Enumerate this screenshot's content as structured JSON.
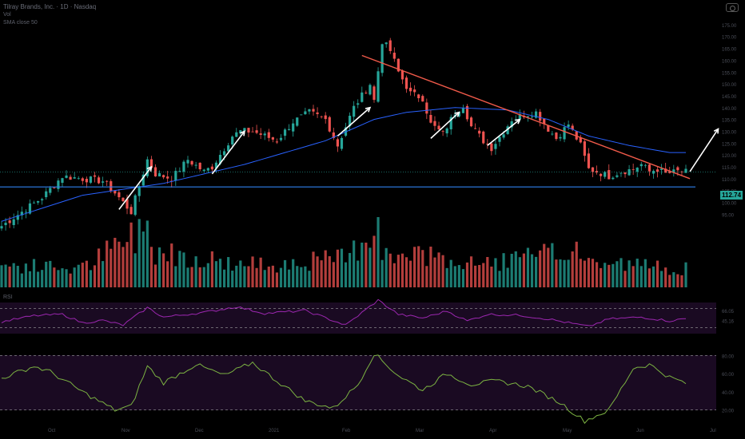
{
  "header": {
    "title": "Tilray Brands, Inc. · 1D · Nasdaq",
    "subtitle": "Vol",
    "indicator": "SMA close 50"
  },
  "camera_icon": "camera-icon",
  "last_price": "112.74",
  "colors": {
    "up": "#26a69a",
    "down": "#ef5350",
    "ma": "#2962ff",
    "trend_line": "#f05a4a",
    "support_line": "#2f80ed",
    "rsi": "#9c27b0",
    "osc": "#7cb342",
    "pane_bg": "#1a0a22",
    "band": "#9e9e9e"
  },
  "chart_data": [
    {
      "type": "candlestick",
      "title": "",
      "xlabel": "",
      "ylabel": "",
      "ylim": [
        85,
        178
      ],
      "price_ticks": [
        "175.00",
        "170.00",
        "165.00",
        "160.00",
        "155.00",
        "150.00",
        "145.00",
        "140.00",
        "135.00",
        "130.00",
        "125.00",
        "120.00",
        "115.00",
        "110.00",
        "105.00",
        "100.00",
        "95.00"
      ],
      "time_ticks": [
        "Oct",
        "Nov",
        "Dec",
        "2021",
        "Feb",
        "Mar",
        "Apr",
        "May",
        "Jun",
        "Jul"
      ],
      "last_price": 112.74,
      "grid": false,
      "candle_count": 170,
      "closes_anchor": [
        [
          0,
          90
        ],
        [
          10,
          102
        ],
        [
          15,
          111
        ],
        [
          25,
          109
        ],
        [
          28,
          104
        ],
        [
          30,
          100
        ],
        [
          32,
          96
        ],
        [
          36,
          118
        ],
        [
          38,
          112
        ],
        [
          42,
          110
        ],
        [
          46,
          118
        ],
        [
          50,
          113
        ],
        [
          52,
          115
        ],
        [
          57,
          128
        ],
        [
          59,
          130
        ],
        [
          62,
          130
        ],
        [
          65,
          128
        ],
        [
          68,
          126
        ],
        [
          72,
          134
        ],
        [
          76,
          138
        ],
        [
          80,
          135
        ],
        [
          83,
          124
        ],
        [
          87,
          140
        ],
        [
          91,
          150
        ],
        [
          92,
          143
        ],
        [
          94,
          168
        ],
        [
          96,
          164
        ],
        [
          98,
          155
        ],
        [
          101,
          146
        ],
        [
          104,
          144
        ],
        [
          106,
          133
        ],
        [
          109,
          129
        ],
        [
          112,
          138
        ],
        [
          114,
          141
        ],
        [
          116,
          132
        ],
        [
          119,
          126
        ],
        [
          121,
          123
        ],
        [
          124,
          130
        ],
        [
          126,
          135
        ],
        [
          129,
          137
        ],
        [
          132,
          138
        ],
        [
          135,
          131
        ],
        [
          137,
          127
        ],
        [
          140,
          133
        ],
        [
          143,
          124
        ],
        [
          145,
          114
        ],
        [
          147,
          113
        ],
        [
          150,
          111
        ],
        [
          153,
          113
        ],
        [
          156,
          114
        ],
        [
          158,
          116
        ],
        [
          160,
          113
        ],
        [
          162,
          114
        ],
        [
          164,
          112
        ],
        [
          167,
          113
        ],
        [
          169,
          112.74
        ]
      ],
      "moving_average_anchor": [
        [
          0,
          92
        ],
        [
          20,
          103
        ],
        [
          40,
          108
        ],
        [
          60,
          116
        ],
        [
          80,
          126
        ],
        [
          92,
          135
        ],
        [
          100,
          138
        ],
        [
          112,
          140
        ],
        [
          125,
          139
        ],
        [
          135,
          135
        ],
        [
          145,
          128
        ],
        [
          155,
          124
        ],
        [
          165,
          121
        ]
      ],
      "trend_line": [
        [
          89,
          162
        ],
        [
          170,
          110
        ]
      ],
      "support_line": 106.5,
      "volume_relative_anchor": [
        [
          0,
          0.35
        ],
        [
          20,
          0.3
        ],
        [
          36,
          0.95
        ],
        [
          37,
          0.6
        ],
        [
          60,
          0.35
        ],
        [
          85,
          0.45
        ],
        [
          93,
          1.0
        ],
        [
          94,
          0.5
        ],
        [
          100,
          0.45
        ],
        [
          106,
          0.5
        ],
        [
          115,
          0.35
        ],
        [
          140,
          0.55
        ],
        [
          145,
          0.4
        ],
        [
          170,
          0.3
        ]
      ],
      "volume_spikes": [
        [
          36,
          0.95
        ],
        [
          93,
          1.0
        ],
        [
          84,
          0.55
        ],
        [
          142,
          0.65
        ],
        [
          106,
          0.58
        ]
      ],
      "arrows": [
        {
          "from": [
            29,
            97
          ],
          "to": [
            37,
            115
          ]
        },
        {
          "from": [
            52,
            112
          ],
          "to": [
            60,
            130
          ]
        },
        {
          "from": [
            83,
            128
          ],
          "to": [
            91,
            140
          ]
        },
        {
          "from": [
            106,
            127
          ],
          "to": [
            113,
            138
          ]
        },
        {
          "from": [
            120,
            124
          ],
          "to": [
            128,
            135
          ]
        },
        {
          "from": [
            170,
            113
          ],
          "to": [
            177,
            131
          ]
        }
      ]
    },
    {
      "type": "line",
      "title": "RSI",
      "ylim": [
        0,
        100
      ],
      "upper_band": 70,
      "lower_band": 30,
      "y_ticks": [
        "66.05",
        "45.16"
      ],
      "series": [
        {
          "values_anchor": [
            [
              0,
              42
            ],
            [
              8,
              55
            ],
            [
              15,
              58
            ],
            [
              20,
              40
            ],
            [
              25,
              45
            ],
            [
              30,
              35
            ],
            [
              36,
              72
            ],
            [
              40,
              52
            ],
            [
              50,
              62
            ],
            [
              58,
              74
            ],
            [
              65,
              60
            ],
            [
              75,
              66
            ],
            [
              85,
              35
            ],
            [
              93,
              88
            ],
            [
              98,
              58
            ],
            [
              104,
              50
            ],
            [
              110,
              65
            ],
            [
              115,
              44
            ],
            [
              120,
              58
            ],
            [
              128,
              56
            ],
            [
              135,
              48
            ],
            [
              140,
              40
            ],
            [
              145,
              32
            ],
            [
              150,
              48
            ],
            [
              158,
              52
            ],
            [
              165,
              44
            ],
            [
              170,
              50
            ]
          ]
        }
      ]
    },
    {
      "type": "line",
      "title": "",
      "upper_band": 80,
      "lower_band": 20,
      "y_ticks": [
        "80.00",
        "60.00",
        "40.00",
        "20.00"
      ],
      "series": [
        {
          "values_anchor": [
            [
              0,
              55
            ],
            [
              8,
              68
            ],
            [
              12,
              62
            ],
            [
              20,
              40
            ],
            [
              28,
              20
            ],
            [
              32,
              24
            ],
            [
              36,
              68
            ],
            [
              40,
              50
            ],
            [
              48,
              70
            ],
            [
              55,
              58
            ],
            [
              62,
              72
            ],
            [
              68,
              52
            ],
            [
              75,
              30
            ],
            [
              82,
              22
            ],
            [
              88,
              48
            ],
            [
              92,
              82
            ],
            [
              98,
              58
            ],
            [
              104,
              42
            ],
            [
              110,
              60
            ],
            [
              116,
              48
            ],
            [
              122,
              52
            ],
            [
              130,
              46
            ],
            [
              138,
              28
            ],
            [
              144,
              8
            ],
            [
              150,
              20
            ],
            [
              156,
              66
            ],
            [
              160,
              70
            ],
            [
              165,
              56
            ],
            [
              170,
              48
            ]
          ]
        }
      ]
    }
  ]
}
